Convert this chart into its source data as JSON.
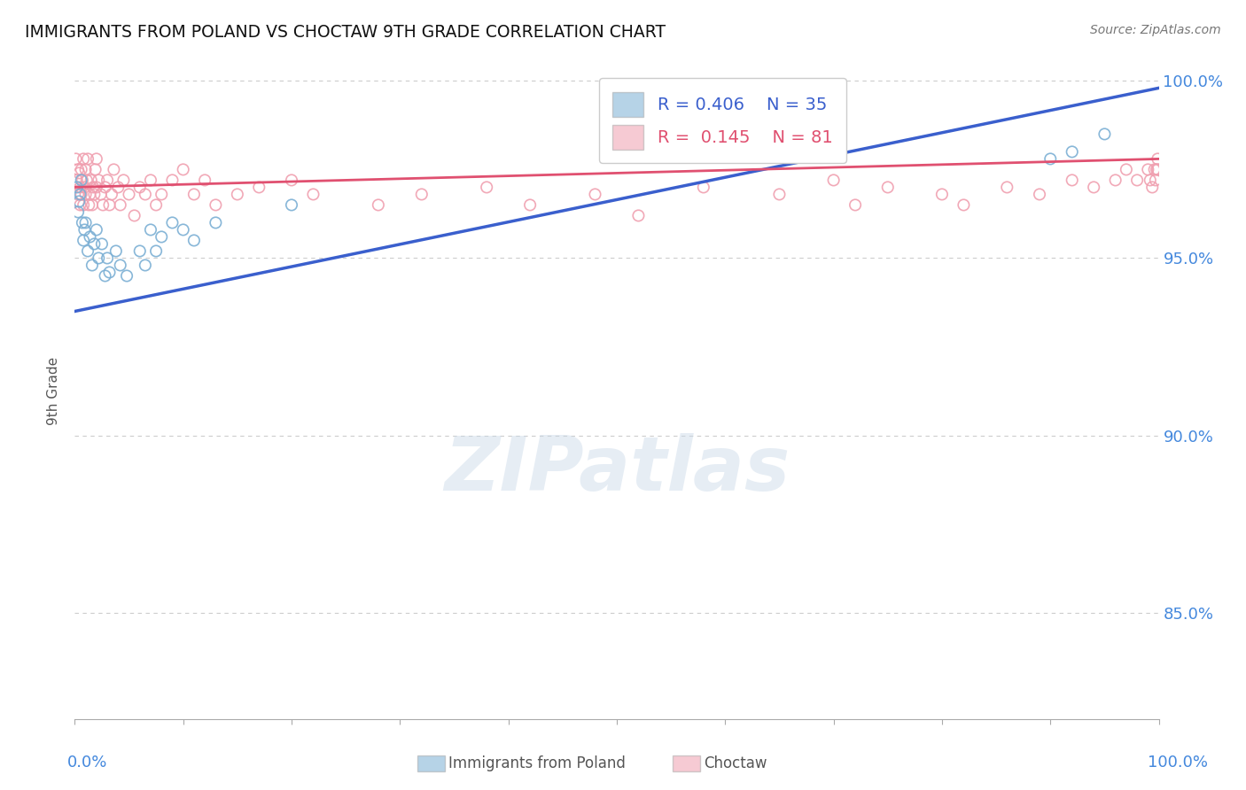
{
  "title": "IMMIGRANTS FROM POLAND VS CHOCTAW 9TH GRADE CORRELATION CHART",
  "source": "Source: ZipAtlas.com",
  "ylabel": "9th Grade",
  "background_color": "#ffffff",
  "grid_color": "#cccccc",
  "legend": {
    "R1": "0.406",
    "N1": "35",
    "R2": "0.145",
    "N2": "81"
  },
  "blue_scatter_x": [
    0.002,
    0.003,
    0.004,
    0.005,
    0.006,
    0.007,
    0.008,
    0.009,
    0.01,
    0.012,
    0.014,
    0.016,
    0.018,
    0.02,
    0.022,
    0.025,
    0.028,
    0.03,
    0.032,
    0.038,
    0.042,
    0.048,
    0.06,
    0.065,
    0.07,
    0.075,
    0.08,
    0.09,
    0.1,
    0.11,
    0.13,
    0.2,
    0.9,
    0.92,
    0.95
  ],
  "blue_scatter_y": [
    0.97,
    0.963,
    0.966,
    0.968,
    0.972,
    0.96,
    0.955,
    0.958,
    0.96,
    0.952,
    0.956,
    0.948,
    0.954,
    0.958,
    0.95,
    0.954,
    0.945,
    0.95,
    0.946,
    0.952,
    0.948,
    0.945,
    0.952,
    0.948,
    0.958,
    0.952,
    0.956,
    0.96,
    0.958,
    0.955,
    0.96,
    0.965,
    0.978,
    0.98,
    0.985
  ],
  "pink_scatter_x": [
    0.001,
    0.002,
    0.003,
    0.003,
    0.004,
    0.005,
    0.005,
    0.006,
    0.006,
    0.007,
    0.008,
    0.008,
    0.009,
    0.01,
    0.01,
    0.011,
    0.012,
    0.013,
    0.014,
    0.015,
    0.016,
    0.017,
    0.018,
    0.019,
    0.02,
    0.02,
    0.022,
    0.024,
    0.026,
    0.028,
    0.03,
    0.032,
    0.034,
    0.036,
    0.04,
    0.042,
    0.045,
    0.05,
    0.055,
    0.06,
    0.065,
    0.07,
    0.075,
    0.08,
    0.09,
    0.1,
    0.11,
    0.12,
    0.13,
    0.15,
    0.17,
    0.2,
    0.22,
    0.28,
    0.32,
    0.38,
    0.42,
    0.48,
    0.52,
    0.58,
    0.65,
    0.7,
    0.72,
    0.75,
    0.8,
    0.82,
    0.86,
    0.89,
    0.92,
    0.94,
    0.96,
    0.97,
    0.98,
    0.99,
    0.992,
    0.994,
    0.996,
    0.997,
    0.998,
    0.999,
    0.999
  ],
  "pink_scatter_y": [
    0.978,
    0.972,
    0.975,
    0.968,
    0.974,
    0.97,
    0.965,
    0.975,
    0.968,
    0.972,
    0.978,
    0.965,
    0.97,
    0.975,
    0.968,
    0.972,
    0.978,
    0.965,
    0.968,
    0.972,
    0.965,
    0.97,
    0.968,
    0.975,
    0.978,
    0.97,
    0.972,
    0.968,
    0.965,
    0.97,
    0.972,
    0.965,
    0.968,
    0.975,
    0.97,
    0.965,
    0.972,
    0.968,
    0.962,
    0.97,
    0.968,
    0.972,
    0.965,
    0.968,
    0.972,
    0.975,
    0.968,
    0.972,
    0.965,
    0.968,
    0.97,
    0.972,
    0.968,
    0.965,
    0.968,
    0.97,
    0.965,
    0.968,
    0.962,
    0.97,
    0.968,
    0.972,
    0.965,
    0.97,
    0.968,
    0.965,
    0.97,
    0.968,
    0.972,
    0.97,
    0.972,
    0.975,
    0.972,
    0.975,
    0.972,
    0.97,
    0.975,
    0.972,
    0.975,
    0.978,
    0.975
  ],
  "blue_color": "#7bafd4",
  "pink_color": "#f0a0b0",
  "blue_line_color": "#3a5fcd",
  "pink_line_color": "#e05070",
  "blue_line_start_y": 0.935,
  "blue_line_end_y": 0.998,
  "pink_line_start_y": 0.97,
  "pink_line_end_y": 0.978,
  "marker_size": 80,
  "marker_linewidth": 1.2,
  "xlim": [
    0.0,
    1.0
  ],
  "ylim": [
    0.82,
    1.005
  ],
  "yticks": [
    0.85,
    0.9,
    0.95,
    1.0
  ],
  "ytick_labels": [
    "85.0%",
    "90.0%",
    "95.0%",
    "100.0%"
  ],
  "xticks": [
    0.0,
    0.1,
    0.2,
    0.3,
    0.4,
    0.5,
    0.6,
    0.7,
    0.8,
    0.9,
    1.0
  ]
}
